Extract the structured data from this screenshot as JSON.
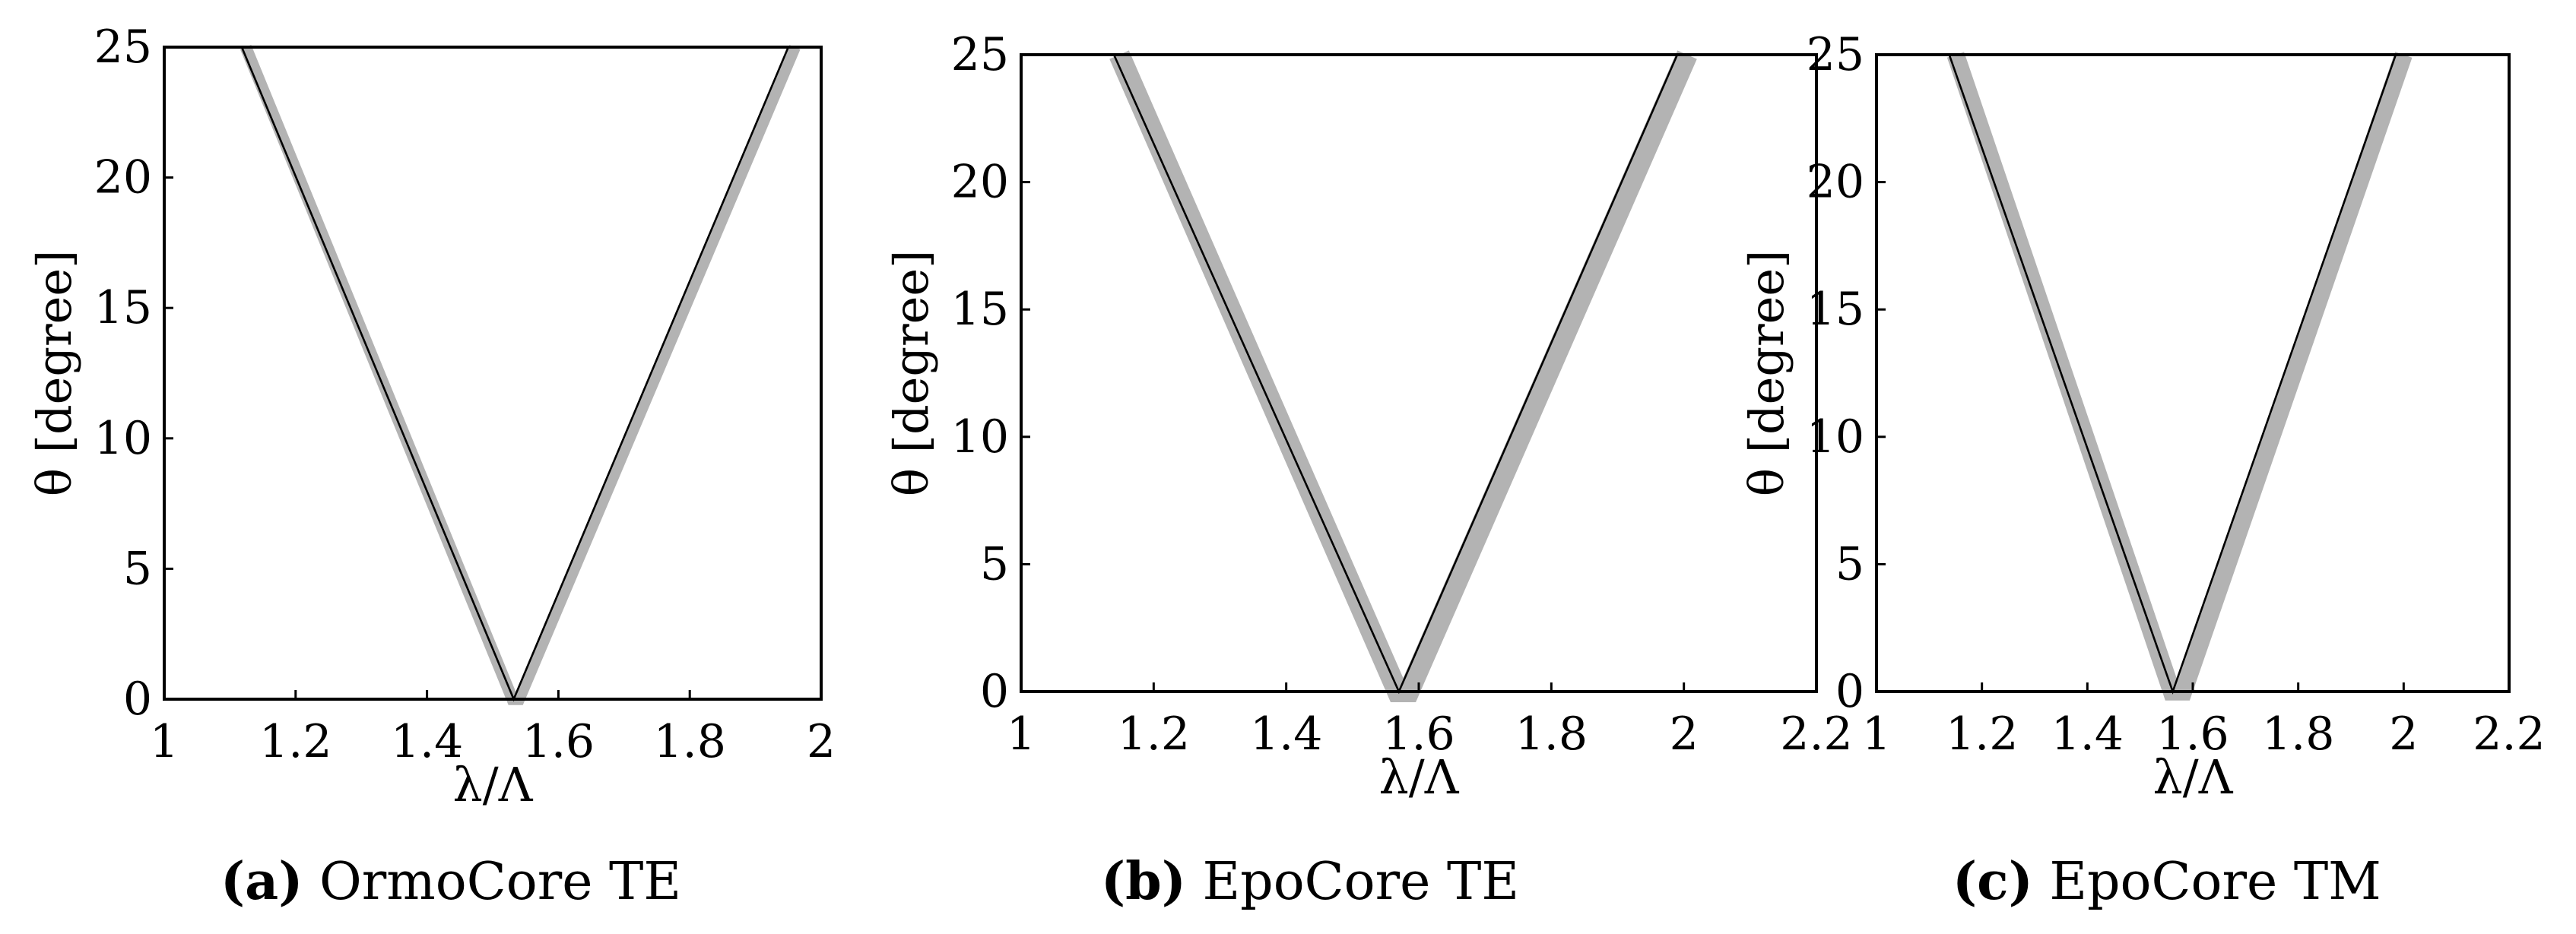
{
  "chart_data": [
    {
      "type": "line",
      "caption": {
        "tag": "(a)",
        "text": "OrmoCore TE"
      },
      "xlabel": "λ/Λ",
      "ylabel": "θ [degree]",
      "xlim": [
        1,
        2
      ],
      "ylim": [
        0,
        25
      ],
      "xticks": [
        "1",
        "1.2",
        "1.4",
        "1.6",
        "1.8",
        "2"
      ],
      "yticks": [
        "0",
        "5",
        "10",
        "15",
        "20",
        "25"
      ],
      "grid": false,
      "series": [
        {
          "style": "band",
          "color": "#b3b3b3",
          "left_edge": [
            {
              "x": 1.124,
              "y": 25
            },
            {
              "x": 1.53,
              "y": 0
            }
          ],
          "right_edge": [
            {
              "x": 1.54,
              "y": 0
            },
            {
              "x": 1.96,
              "y": 25
            }
          ],
          "width": 0.018
        },
        {
          "style": "line",
          "color": "#000000",
          "x": [
            1.118,
            1.532,
            1.95
          ],
          "y": [
            25,
            0,
            25
          ]
        }
      ]
    },
    {
      "type": "line",
      "caption": {
        "tag": "(b)",
        "text": "EpoCore TE"
      },
      "xlabel": "λ/Λ",
      "ylabel": "θ [degree]",
      "xlim": [
        1,
        2.2
      ],
      "ylim": [
        0,
        25
      ],
      "xticks": [
        "1",
        "1.2",
        "1.4",
        "1.6",
        "1.8",
        "2",
        "2.2"
      ],
      "yticks": [
        "0",
        "5",
        "10",
        "15",
        "20",
        "25"
      ],
      "grid": false,
      "series": [
        {
          "style": "band",
          "color": "#b3b3b3",
          "left_edge": [
            {
              "x": 1.148,
              "y": 25
            },
            {
              "x": 1.568,
              "y": 0
            }
          ],
          "right_edge": [
            {
              "x": 1.585,
              "y": 0
            },
            {
              "x": 2.005,
              "y": 25
            }
          ],
          "width": 0.032
        },
        {
          "style": "line",
          "color": "#000000",
          "x": [
            1.14,
            1.57,
            1.99
          ],
          "y": [
            25,
            0,
            25
          ]
        }
      ]
    },
    {
      "type": "line",
      "caption": {
        "tag": "(c)",
        "text": "EpoCore TM"
      },
      "xlabel": "λ/Λ",
      "ylabel": "θ [degree]",
      "xlim": [
        1,
        2.2
      ],
      "ylim": [
        0,
        25
      ],
      "xticks": [
        "1",
        "1.2",
        "1.4",
        "1.6",
        "1.8",
        "2",
        "2.2"
      ],
      "yticks": [
        "0",
        "5",
        "10",
        "15",
        "20",
        "25"
      ],
      "grid": false,
      "series": [
        {
          "style": "band",
          "color": "#b3b3b3",
          "left_edge": [
            {
              "x": 1.15,
              "y": 25
            },
            {
              "x": 1.56,
              "y": 0
            }
          ],
          "right_edge": [
            {
              "x": 1.582,
              "y": 0
            },
            {
              "x": 2.0,
              "y": 25
            }
          ],
          "width": 0.034
        },
        {
          "style": "line",
          "color": "#000000",
          "x": [
            1.138,
            1.562,
            1.985
          ],
          "y": [
            25,
            0,
            25
          ]
        }
      ]
    }
  ]
}
